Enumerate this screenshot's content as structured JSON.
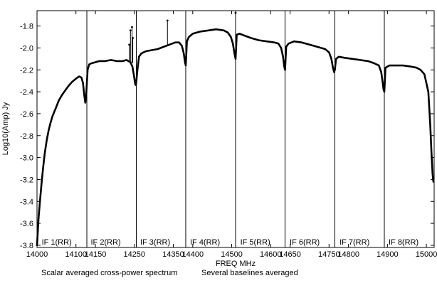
{
  "chart_data": {
    "type": "line",
    "title": "",
    "xlabel": "FREQ MHz",
    "ylabel": "Log10(Amp) Jy",
    "xlim": [
      14000,
      15020
    ],
    "ylim": [
      -3.82,
      -1.66
    ],
    "x_ticks": [
      14000,
      14100,
      14150,
      14250,
      14350,
      14400,
      14500,
      14600,
      14650,
      14750,
      14800,
      14900,
      15000
    ],
    "x_tick_labels": [
      "14000",
      "14100",
      "14150",
      "14250",
      "14350",
      "14400",
      "14500",
      "14600",
      "14650",
      "14750",
      "14800",
      "14900",
      "15000"
    ],
    "y_ticks": [
      -3.8,
      -3.6,
      -3.4,
      -3.2,
      -3.0,
      -2.8,
      -2.6,
      -2.4,
      -2.2,
      -2.0,
      -1.8
    ],
    "y_tick_labels": [
      "-3.8",
      "-3.6",
      "-3.4",
      "-3.2",
      "-3.0",
      "-2.8",
      "-2.6",
      "-2.4",
      "-2.2",
      "-2.0",
      "-1.8"
    ],
    "grid": false,
    "line_color": "#000000",
    "if_boundaries": [
      14128,
      14255,
      14382,
      14510,
      14637,
      14765,
      14892
    ],
    "if_labels": [
      {
        "text": "IF 1(RR)",
        "x": 14012
      },
      {
        "text": "IF 2(RR)",
        "x": 14138
      },
      {
        "text": "IF 3(RR)",
        "x": 14265
      },
      {
        "text": "IF 4(RR)",
        "x": 14393
      },
      {
        "text": "IF 5(RR)",
        "x": 14522
      },
      {
        "text": "IF 6(RR)",
        "x": 14649
      },
      {
        "text": "IF 7(RR)",
        "x": 14777
      },
      {
        "text": "IF 8(RR)",
        "x": 14903
      }
    ],
    "series": [
      {
        "x": [
          14000,
          14004,
          14008,
          14012,
          14016,
          14020,
          14025,
          14030,
          14035,
          14040,
          14048,
          14056,
          14064,
          14072,
          14080,
          14090,
          14100,
          14108,
          14114,
          14118,
          14121,
          14124,
          14126,
          14130,
          14134,
          14140,
          14150,
          14160,
          14175,
          14190,
          14205,
          14220,
          14230,
          14240,
          14245,
          14249,
          14252,
          14254,
          14258,
          14262,
          14268,
          14280,
          14295,
          14310,
          14325,
          14340,
          14355,
          14365,
          14372,
          14377,
          14380,
          14382,
          14385,
          14390,
          14400,
          14420,
          14440,
          14460,
          14480,
          14490,
          14498,
          14503,
          14507,
          14510,
          14513,
          14520,
          14535,
          14550,
          14570,
          14590,
          14610,
          14620,
          14627,
          14632,
          14635,
          14637,
          14640,
          14646,
          14660,
          14680,
          14700,
          14720,
          14740,
          14750,
          14756,
          14760,
          14763,
          14765,
          14768,
          14775,
          14790,
          14810,
          14830,
          14850,
          14866,
          14878,
          14884,
          14888,
          14890,
          14892,
          14895,
          14905,
          14920,
          14940,
          14960,
          14975,
          14985,
          14995,
          15005,
          15010,
          15013,
          15016,
          15018
        ],
        "y": [
          -3.8,
          -3.55,
          -3.38,
          -3.22,
          -3.08,
          -2.96,
          -2.84,
          -2.75,
          -2.68,
          -2.62,
          -2.55,
          -2.48,
          -2.43,
          -2.39,
          -2.35,
          -2.31,
          -2.28,
          -2.26,
          -2.27,
          -2.32,
          -2.42,
          -2.5,
          -2.45,
          -2.2,
          -2.15,
          -2.14,
          -2.13,
          -2.12,
          -2.12,
          -2.11,
          -2.12,
          -2.12,
          -2.11,
          -2.13,
          -2.17,
          -2.25,
          -2.33,
          -2.34,
          -2.2,
          -2.08,
          -2.05,
          -2.03,
          -2.02,
          -2.01,
          -1.99,
          -1.97,
          -1.95,
          -1.95,
          -1.98,
          -2.05,
          -2.13,
          -2.16,
          -1.94,
          -1.9,
          -1.87,
          -1.85,
          -1.84,
          -1.83,
          -1.84,
          -1.86,
          -1.9,
          -1.96,
          -2.05,
          -2.1,
          -1.88,
          -1.87,
          -1.89,
          -1.91,
          -1.93,
          -1.94,
          -1.95,
          -1.96,
          -2.0,
          -2.08,
          -2.17,
          -2.2,
          -1.99,
          -1.96,
          -1.94,
          -1.95,
          -1.97,
          -1.99,
          -2.01,
          -2.04,
          -2.1,
          -2.18,
          -2.22,
          -2.2,
          -2.1,
          -2.08,
          -2.09,
          -2.1,
          -2.11,
          -2.12,
          -2.14,
          -2.16,
          -2.22,
          -2.32,
          -2.38,
          -2.4,
          -2.18,
          -2.16,
          -2.16,
          -2.16,
          -2.17,
          -2.18,
          -2.2,
          -2.24,
          -2.4,
          -2.7,
          -2.95,
          -3.15,
          -3.22
        ]
      }
    ],
    "spikes": [
      {
        "x": 14237,
        "y0": -2.12,
        "y1": -1.97
      },
      {
        "x": 14240,
        "y0": -2.12,
        "y1": -1.84
      },
      {
        "x": 14244,
        "y0": -2.13,
        "y1": -1.81
      },
      {
        "x": 14246,
        "y0": -2.14,
        "y1": -1.91
      },
      {
        "x": 14335,
        "y0": -1.98,
        "y1": -1.75
      },
      {
        "x": 14510,
        "y0": -2.08,
        "y1": -1.68
      }
    ],
    "footer": {
      "left": "Scalar averaged cross-power spectrum",
      "right": "Several baselines averaged"
    }
  }
}
